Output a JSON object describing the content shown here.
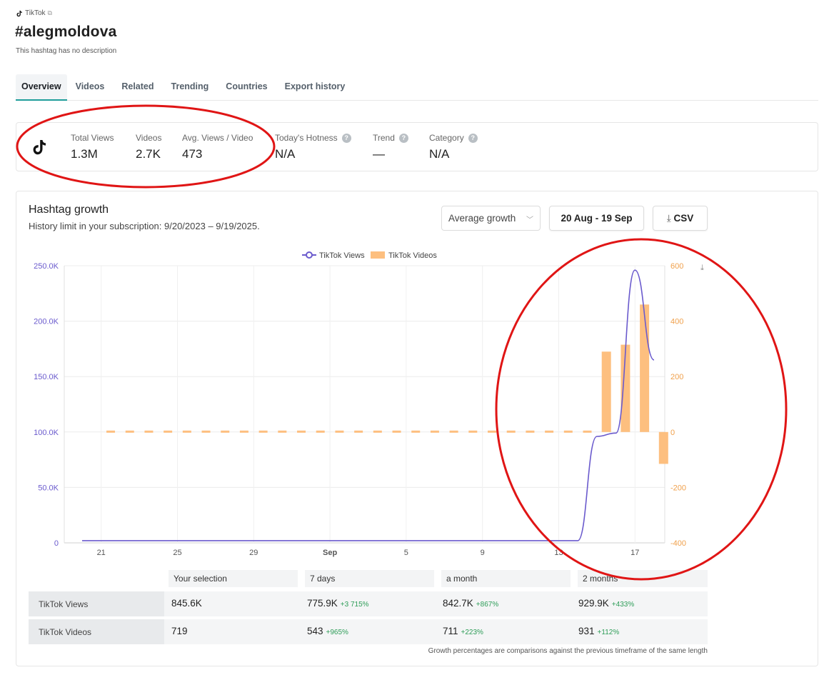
{
  "platform": {
    "label": "TikTok",
    "ext_icon": "external-link-icon"
  },
  "header": {
    "title": "#alegmoldova",
    "subtitle": "This hashtag has no description"
  },
  "tabs": [
    {
      "label": "Overview",
      "active": true
    },
    {
      "label": "Videos",
      "active": false
    },
    {
      "label": "Related",
      "active": false
    },
    {
      "label": "Trending",
      "active": false
    },
    {
      "label": "Countries",
      "active": false
    },
    {
      "label": "Export history",
      "active": false
    }
  ],
  "stats": {
    "total_views": {
      "label": "Total Views",
      "value": "1.3M"
    },
    "videos": {
      "label": "Videos",
      "value": "2.7K"
    },
    "avg_views": {
      "label": "Avg. Views / Video",
      "value": "473"
    },
    "hotness": {
      "label": "Today's Hotness",
      "value": "N/A",
      "help": "?"
    },
    "trend": {
      "label": "Trend",
      "value": "—",
      "help": "?"
    },
    "category": {
      "label": "Category",
      "value": "N/A",
      "help": "?"
    }
  },
  "growth": {
    "title": "Hashtag growth",
    "subtitle": "History limit in your subscription: 9/20/2023 – 9/19/2025.",
    "mode_select": "Average growth",
    "date_range": "20 Aug - 19 Sep",
    "csv_label": "CSV"
  },
  "chart_data": {
    "type": "bar",
    "legend": [
      "TikTok Views",
      "TikTok Videos"
    ],
    "legend_position": "top-center",
    "x_tick_labels": [
      "21",
      "25",
      "29",
      "Sep",
      "5",
      "9",
      "13",
      "17"
    ],
    "left_axis": {
      "ticks": [
        "250.0K",
        "200.0K",
        "150.0K",
        "100.0K",
        "50.0K",
        "0"
      ],
      "min": 0,
      "max": 250000
    },
    "right_axis": {
      "ticks": [
        "600",
        "400",
        "200",
        "0",
        "-200",
        "-400"
      ],
      "min": -400,
      "max": 600
    },
    "series": [
      {
        "name": "TikTok Views",
        "type": "line",
        "color": "#6a5acd",
        "x": [
          "Aug 20",
          "Aug 21",
          "Aug 22",
          "Aug 23",
          "Aug 24",
          "Aug 25",
          "Aug 26",
          "Aug 27",
          "Aug 28",
          "Aug 29",
          "Aug 30",
          "Aug 31",
          "Sep 1",
          "Sep 2",
          "Sep 3",
          "Sep 4",
          "Sep 5",
          "Sep 6",
          "Sep 7",
          "Sep 8",
          "Sep 9",
          "Sep 10",
          "Sep 11",
          "Sep 12",
          "Sep 13",
          "Sep 14",
          "Sep 15",
          "Sep 16",
          "Sep 17",
          "Sep 18",
          "Sep 19"
        ],
        "values": [
          2000,
          2000,
          2000,
          2000,
          2000,
          2000,
          2000,
          2000,
          2000,
          2000,
          2000,
          2000,
          2000,
          2000,
          2000,
          2000,
          2000,
          2000,
          2000,
          2000,
          2000,
          2000,
          2000,
          2000,
          2000,
          2000,
          2000,
          96000,
          99000,
          246000,
          165000
        ]
      },
      {
        "name": "TikTok Videos",
        "type": "bar",
        "color": "#fdbf7f",
        "x": [
          "Aug 21",
          "Aug 22",
          "Aug 23",
          "Aug 24",
          "Aug 25",
          "Aug 26",
          "Aug 27",
          "Aug 28",
          "Aug 29",
          "Aug 30",
          "Aug 31",
          "Sep 1",
          "Sep 2",
          "Sep 3",
          "Sep 4",
          "Sep 5",
          "Sep 6",
          "Sep 7",
          "Sep 8",
          "Sep 9",
          "Sep 10",
          "Sep 11",
          "Sep 12",
          "Sep 13",
          "Sep 14",
          "Sep 15",
          "Sep 16",
          "Sep 17",
          "Sep 18",
          "Sep 19"
        ],
        "values": [
          0,
          0,
          0,
          0,
          0,
          0,
          0,
          0,
          0,
          0,
          0,
          0,
          0,
          0,
          0,
          0,
          0,
          0,
          0,
          0,
          0,
          0,
          0,
          0,
          0,
          0,
          290,
          315,
          460,
          -115
        ]
      }
    ]
  },
  "table": {
    "columns": [
      "Your selection",
      "7 days",
      "a month",
      "2 months"
    ],
    "rows": [
      {
        "label": "TikTok Views",
        "cells": [
          {
            "value": "845.6K",
            "pct": ""
          },
          {
            "value": "775.9K",
            "pct": "+3 715%"
          },
          {
            "value": "842.7K",
            "pct": "+867%"
          },
          {
            "value": "929.9K",
            "pct": "+433%"
          }
        ]
      },
      {
        "label": "TikTok Videos",
        "cells": [
          {
            "value": "719",
            "pct": ""
          },
          {
            "value": "543",
            "pct": "+965%"
          },
          {
            "value": "711",
            "pct": "+223%"
          },
          {
            "value": "931",
            "pct": "+112%"
          }
        ]
      }
    ],
    "note": "Growth percentages are comparisons against the previous timeframe of the same length"
  },
  "colors": {
    "accent": "#1f9d9a",
    "annotation": "#e01515",
    "views_line": "#6a5acd",
    "videos_bar": "#fdbf7f"
  }
}
